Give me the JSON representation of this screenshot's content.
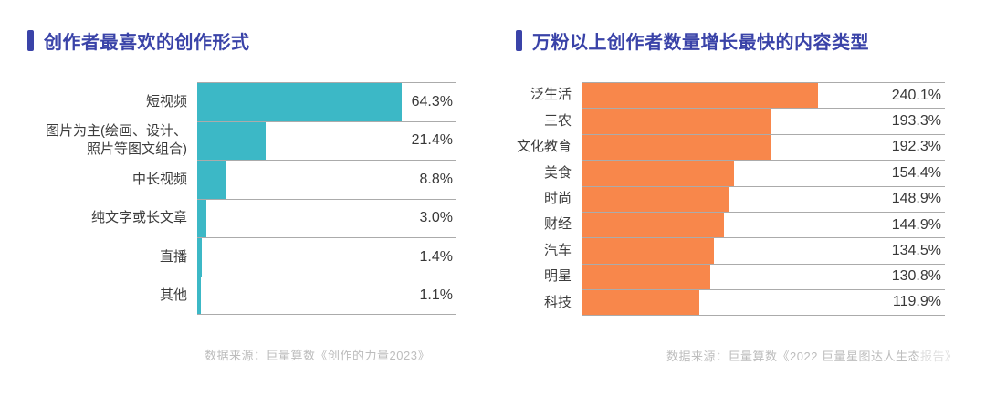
{
  "page": {
    "background": "#ffffff"
  },
  "colors": {
    "title_accent": "#3A43A8",
    "left_bar": "#3CB8C6",
    "right_bar": "#F8874B",
    "separator_line": "#ABABAB",
    "label_text": "#3C3C3C",
    "source_text": "#BDBDBD"
  },
  "chart_data": [
    {
      "type": "bar",
      "orientation": "horizontal",
      "title": "创作者最喜欢的创作形式",
      "categories": [
        "短视频",
        "图片为主(绘画、设计、\n照片等图文组合)",
        "中长视频",
        "纯文字或长文章",
        "直播",
        "其他"
      ],
      "values": [
        64.3,
        21.4,
        8.8,
        3.0,
        1.4,
        1.1
      ],
      "value_labels": [
        "64.3%",
        "21.4%",
        "8.8%",
        "3.0%",
        "1.4%",
        "1.1%"
      ],
      "unit": "%",
      "axis_max": 81.5,
      "bar_color": "#3CB8C6",
      "legend": "none",
      "grid": "row-separator-lines",
      "source_prefix": "数据来源：巨量算数《创作的力量2023》",
      "source_faded": ""
    },
    {
      "type": "bar",
      "orientation": "horizontal",
      "title": "万粉以上创作者数量增长最快的内容类型",
      "categories": [
        "泛生活",
        "三农",
        "文化教育",
        "美食",
        "时尚",
        "财经",
        "汽车",
        "明星",
        "科技"
      ],
      "values": [
        240.1,
        193.3,
        192.3,
        154.4,
        148.9,
        144.9,
        134.5,
        130.8,
        119.9
      ],
      "value_labels": [
        "240.1%",
        "193.3%",
        "192.3%",
        "154.4%",
        "148.9%",
        "144.9%",
        "134.5%",
        "130.8%",
        "119.9%"
      ],
      "unit": "%",
      "axis_max": 369,
      "bar_color": "#F8874B",
      "legend": "none",
      "grid": "row-separator-lines",
      "source_prefix": "数据来源：巨量算数《2022 巨量星图达人生态",
      "source_faded": "报告》"
    }
  ]
}
